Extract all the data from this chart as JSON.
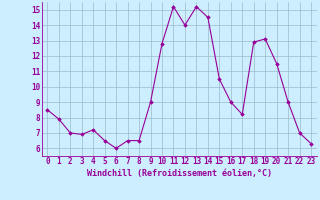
{
  "x": [
    0,
    1,
    2,
    3,
    4,
    5,
    6,
    7,
    8,
    9,
    10,
    11,
    12,
    13,
    14,
    15,
    16,
    17,
    18,
    19,
    20,
    21,
    22,
    23
  ],
  "y": [
    8.5,
    7.9,
    7.0,
    6.9,
    7.2,
    6.5,
    6.0,
    6.5,
    6.5,
    9.0,
    12.8,
    15.2,
    14.0,
    15.2,
    14.5,
    10.5,
    9.0,
    8.2,
    12.9,
    13.1,
    11.5,
    9.0,
    7.0,
    6.3
  ],
  "line_color": "#990099",
  "marker": "D",
  "marker_size": 1.8,
  "line_width": 0.8,
  "bg_color": "#cceeff",
  "grid_color": "#99bbcc",
  "xlabel": "Windchill (Refroidissement éolien,°C)",
  "xlabel_color": "#990099",
  "tick_color": "#990099",
  "xlim": [
    -0.5,
    23.5
  ],
  "ylim": [
    5.5,
    15.5
  ],
  "yticks": [
    6,
    7,
    8,
    9,
    10,
    11,
    12,
    13,
    14,
    15
  ],
  "xticks": [
    0,
    1,
    2,
    3,
    4,
    5,
    6,
    7,
    8,
    9,
    10,
    11,
    12,
    13,
    14,
    15,
    16,
    17,
    18,
    19,
    20,
    21,
    22,
    23
  ],
  "tick_font_size": 5.5,
  "xlabel_font_size": 6.0
}
